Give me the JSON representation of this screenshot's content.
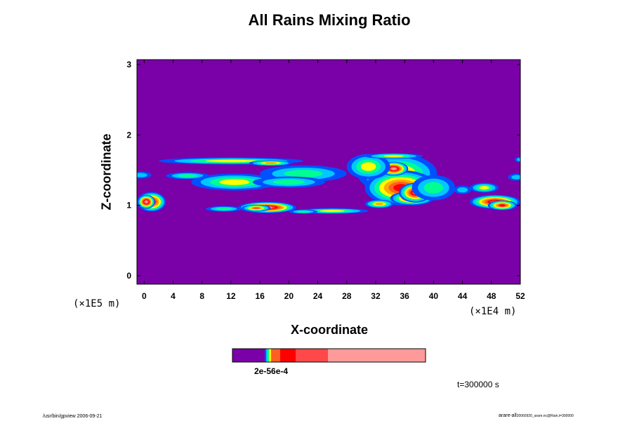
{
  "chart_data": {
    "type": "heatmap",
    "title": "All Rains Mixing Ratio",
    "xlabel": "X-coordinate",
    "ylabel": "Z-coordinate",
    "x_unit_label": "(×1E4 m)",
    "y_unit_label": "(×1E5 m)",
    "x_ticks": [
      0,
      4,
      8,
      12,
      16,
      20,
      24,
      28,
      32,
      36,
      40,
      44,
      48,
      52
    ],
    "y_ticks": [
      0,
      1,
      2,
      3
    ],
    "xlim": [
      -1,
      52
    ],
    "ylim": [
      -0.12,
      3.07
    ],
    "grid": false,
    "colorbar": {
      "label": "2e-56e-4",
      "colors": [
        "#7a00a8",
        "#0050ff",
        "#00c8ff",
        "#00ff90",
        "#ffff00",
        "#ffaa00",
        "#ff6020",
        "#ff0000",
        "#ff4848",
        "#ff9a9a"
      ]
    },
    "time_label": "t=300000 s",
    "footer_left": "/usr/bin/gpview 2006-09-21",
    "footer_right_main": "arare-all",
    "footer_right_small": "20060920_arare.nc@Rain,t=300000"
  }
}
